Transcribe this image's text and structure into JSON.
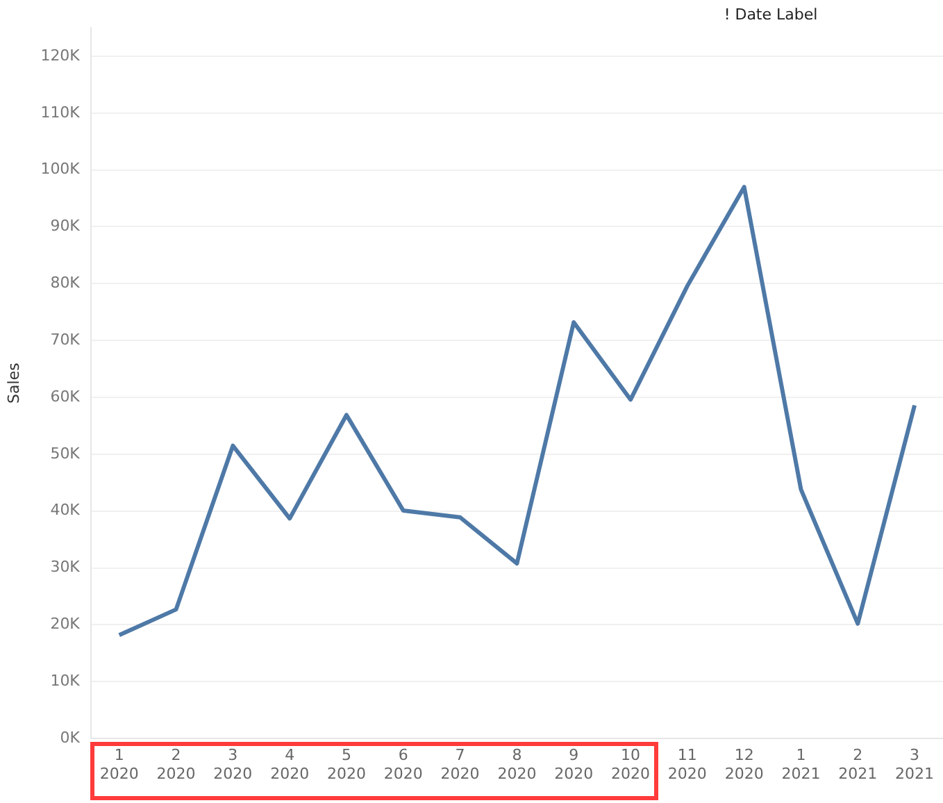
{
  "chart_data": {
    "type": "line",
    "title": "! Date Label",
    "ylabel": "Sales",
    "categories": [
      "1 2020",
      "2 2020",
      "3 2020",
      "4 2020",
      "5 2020",
      "6 2020",
      "7 2020",
      "8 2020",
      "9 2020",
      "10 2020",
      "11 2020",
      "12 2020",
      "1 2021",
      "2 2021",
      "3 2021"
    ],
    "series": [
      {
        "color": "#4e79a7",
        "values": [
          18200,
          22700,
          51500,
          38700,
          56900,
          40100,
          38900,
          30800,
          73200,
          59600,
          79600,
          97000,
          43800,
          20200,
          58600
        ]
      }
    ],
    "ylim": [
      0,
      125000
    ],
    "yticks": [
      {
        "value": 0,
        "label": "0K"
      },
      {
        "value": 10000,
        "label": "10K"
      },
      {
        "value": 20000,
        "label": "20K"
      },
      {
        "value": 30000,
        "label": "30K"
      },
      {
        "value": 40000,
        "label": "40K"
      },
      {
        "value": 50000,
        "label": "50K"
      },
      {
        "value": 60000,
        "label": "60K"
      },
      {
        "value": 70000,
        "label": "70K"
      },
      {
        "value": 80000,
        "label": "80K"
      },
      {
        "value": 90000,
        "label": "90K"
      },
      {
        "value": 100000,
        "label": "100K"
      },
      {
        "value": 110000,
        "label": "110K"
      },
      {
        "value": 120000,
        "label": "120K"
      }
    ],
    "grid": "y",
    "legend": false,
    "marker": "none",
    "line_style": "solid"
  }
}
